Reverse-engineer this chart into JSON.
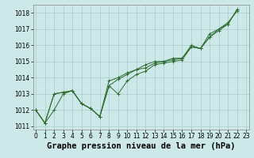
{
  "xlabel": "Graphe pression niveau de la mer (hPa)",
  "ylabel": "",
  "bg_color": "#cce8e8",
  "grid_color": "#aacccc",
  "line_color": "#2d6b2d",
  "x_ticks": [
    0,
    1,
    2,
    3,
    4,
    5,
    6,
    7,
    8,
    9,
    10,
    11,
    12,
    13,
    14,
    15,
    16,
    17,
    18,
    19,
    20,
    21,
    22,
    23
  ],
  "ylim": [
    1010.8,
    1018.5
  ],
  "yticks": [
    1011,
    1012,
    1013,
    1014,
    1015,
    1016,
    1017,
    1018
  ],
  "series": [
    [
      1012.0,
      1011.2,
      1012.0,
      1013.0,
      1013.2,
      1012.4,
      1012.1,
      1011.6,
      1013.5,
      1013.0,
      1013.8,
      1014.2,
      1014.4,
      1014.8,
      1014.9,
      1015.0,
      1015.1,
      1015.9,
      1015.8,
      1016.5,
      1017.0,
      1017.3,
      1018.2
    ],
    [
      1012.0,
      1011.2,
      1013.0,
      1013.1,
      1013.2,
      1012.4,
      1012.1,
      1011.6,
      1013.8,
      1014.0,
      1014.3,
      1014.5,
      1014.8,
      1015.0,
      1015.0,
      1015.2,
      1015.2,
      1015.9,
      1015.8,
      1016.5,
      1016.9,
      1017.3,
      1018.2
    ],
    [
      1012.0,
      1011.2,
      1013.0,
      1013.1,
      1013.2,
      1012.4,
      1012.1,
      1011.6,
      1013.5,
      1013.9,
      1014.2,
      1014.5,
      1014.6,
      1014.9,
      1015.0,
      1015.1,
      1015.2,
      1016.0,
      1015.8,
      1016.7,
      1017.0,
      1017.4,
      1018.1
    ]
  ],
  "xlabel_fontsize": 7.5,
  "tick_fontsize": 5.5
}
